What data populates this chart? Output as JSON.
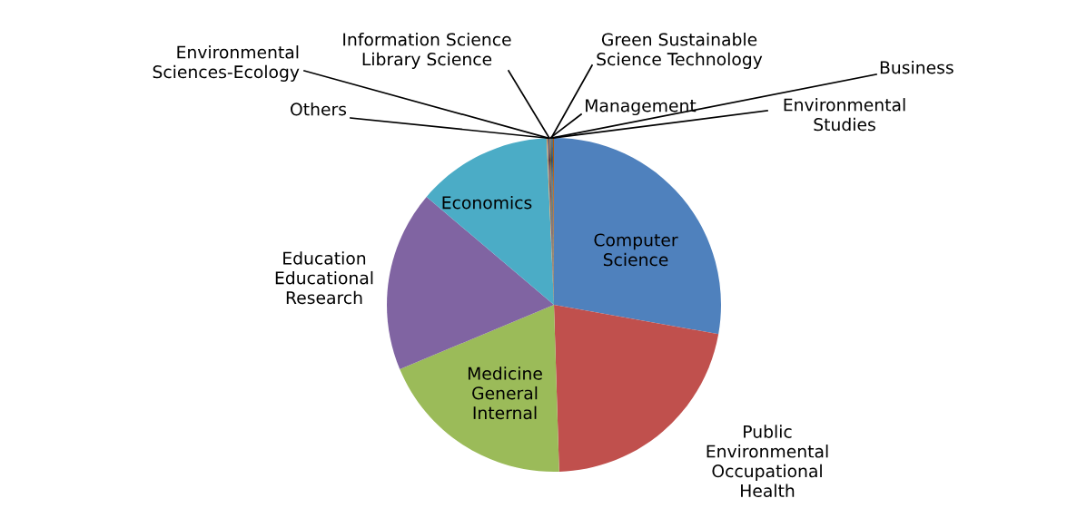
{
  "chart_data": {
    "type": "pie",
    "categories": [
      "Computer Science",
      "Public Environmental Occupational Health",
      "Medicine General Internal",
      "Education Educational Research",
      "Economics",
      "Others",
      "Environmental Sciences-Ecology",
      "Information Science Library Science",
      "Management",
      "Green Sustainable Science Technology",
      "Business",
      "Environmental Studies"
    ],
    "values": [
      27.8,
      21.7,
      19.2,
      17.5,
      13.1,
      0.1,
      0.1,
      0.1,
      0.1,
      0.1,
      0.1,
      0.1
    ],
    "colors": [
      "#4f81bd",
      "#c0504d",
      "#9bbb59",
      "#8064a2",
      "#4bacc6",
      "#f79646",
      "#2c4d75",
      "#772c2a",
      "#5f7530",
      "#4d3b62",
      "#276a7c",
      "#b65708"
    ],
    "legend": false
  }
}
